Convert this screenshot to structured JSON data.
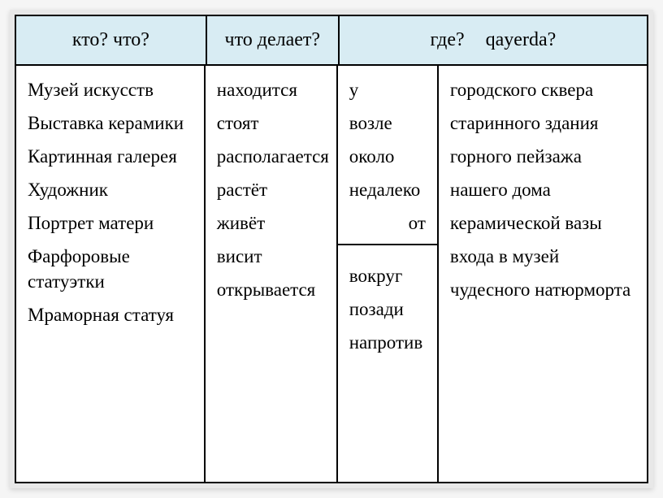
{
  "headers": {
    "col1": "кто? что?",
    "col2": "что делает?",
    "col34_left": "где?",
    "col34_right": "qayerda?"
  },
  "col1_items": [
    "Музей искусств",
    "Выставка керамики",
    "Картинная галерея",
    "Художник",
    "Портрет матери",
    "Фарфоровые статуэтки",
    "Мраморная статуя"
  ],
  "col2_items": [
    "находится",
    "стоят",
    "располагается",
    "растёт",
    "живёт",
    "висит",
    "открывается"
  ],
  "col3_upper": [
    "у",
    "возле",
    "около",
    "недалеко",
    "от"
  ],
  "col3_lower": [
    "вокруг",
    "позади",
    "напротив"
  ],
  "col4_items": [
    "городского сквера",
    "старинного здания",
    "горного пейзажа",
    "нашего дома",
    "керамической вазы",
    "входа в музей",
    "чудесного натюрморта"
  ],
  "styling": {
    "header_bg": "#d8ecf3",
    "border_color": "#000000",
    "body_bg": "#ffffff",
    "page_bg": "#f5f5f5",
    "font_family": "Georgia, serif",
    "header_fontsize": 24,
    "body_fontsize": 23
  }
}
